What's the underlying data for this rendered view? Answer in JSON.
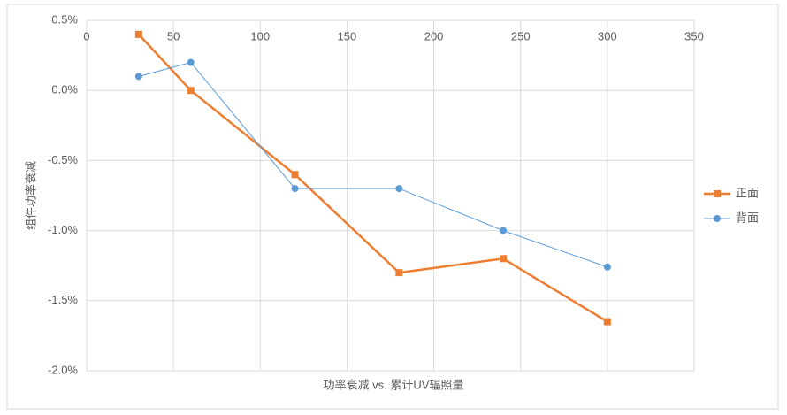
{
  "chart_data": {
    "type": "scatter-line",
    "x_label": "功率衰减 vs. 累计UV辐照量",
    "y_label": "组件功率衰减",
    "xlim": [
      0,
      350
    ],
    "xticks": [
      0,
      50,
      100,
      150,
      200,
      250,
      300,
      350
    ],
    "ylim": [
      -2.0,
      0.5
    ],
    "yticks": [
      {
        "value": -2.0,
        "label": "-2.0%"
      },
      {
        "value": -1.5,
        "label": "-1.5%"
      },
      {
        "value": -1.0,
        "label": "-1.0%"
      },
      {
        "value": -0.5,
        "label": "-0.5%"
      },
      {
        "value": 0.0,
        "label": "0.0%"
      },
      {
        "value": 0.5,
        "label": "0.5%"
      }
    ],
    "grid": true,
    "legend": "right",
    "series": [
      {
        "name": "正面",
        "color": "#ed7d31",
        "marker": "square",
        "x": [
          30,
          60,
          120,
          180,
          240,
          300
        ],
        "values": [
          0.4,
          0.0,
          -0.6,
          -1.3,
          -1.2,
          -1.65
        ]
      },
      {
        "name": "背面",
        "color": "#5b9bd5",
        "marker": "circle",
        "x": [
          30,
          60,
          120,
          180,
          240,
          300
        ],
        "values": [
          0.1,
          0.2,
          -0.7,
          -0.7,
          -1.0,
          -1.26
        ]
      }
    ]
  }
}
